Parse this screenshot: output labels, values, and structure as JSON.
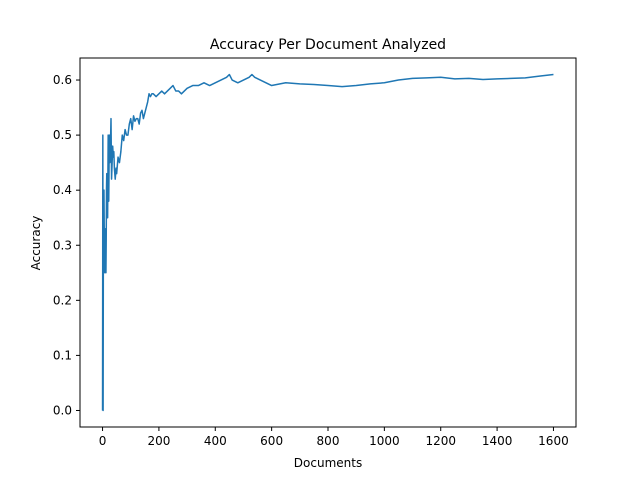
{
  "chart_data": {
    "type": "line",
    "title": "Accuracy Per Document Analyzed",
    "xlabel": "Documents",
    "ylabel": "Accuracy",
    "xlim": [
      -80,
      1680
    ],
    "ylim": [
      -0.03,
      0.64
    ],
    "xticks": [
      0,
      200,
      400,
      600,
      800,
      1000,
      1200,
      1400,
      1600
    ],
    "yticks": [
      0.0,
      0.1,
      0.2,
      0.3,
      0.4,
      0.5,
      0.6
    ],
    "ytick_labels": [
      "0.0",
      "0.1",
      "0.2",
      "0.3",
      "0.4",
      "0.5",
      "0.6"
    ],
    "grid": false,
    "series": [
      {
        "color": "#1f77b4",
        "x": [
          0,
          1,
          2,
          3,
          4,
          5,
          6,
          7,
          8,
          9,
          10,
          11,
          12,
          13,
          14,
          15,
          16,
          18,
          20,
          22,
          24,
          26,
          28,
          30,
          32,
          34,
          36,
          38,
          40,
          42,
          45,
          48,
          50,
          55,
          60,
          65,
          70,
          75,
          80,
          85,
          90,
          95,
          100,
          105,
          110,
          115,
          120,
          125,
          130,
          135,
          140,
          145,
          150,
          155,
          160,
          165,
          170,
          175,
          180,
          190,
          200,
          210,
          220,
          230,
          240,
          250,
          260,
          270,
          280,
          290,
          300,
          320,
          340,
          360,
          380,
          400,
          420,
          440,
          450,
          460,
          480,
          500,
          520,
          530,
          540,
          560,
          580,
          600,
          650,
          700,
          750,
          800,
          850,
          900,
          950,
          1000,
          1050,
          1100,
          1150,
          1200,
          1250,
          1300,
          1350,
          1400,
          1450,
          1500,
          1550,
          1600
        ],
        "y": [
          0.0,
          0.5,
          0.0,
          0.33,
          0.25,
          0.4,
          0.33,
          0.29,
          0.25,
          0.33,
          0.3,
          0.27,
          0.25,
          0.31,
          0.4,
          0.43,
          0.4,
          0.35,
          0.5,
          0.38,
          0.5,
          0.45,
          0.48,
          0.53,
          0.42,
          0.45,
          0.48,
          0.46,
          0.47,
          0.44,
          0.42,
          0.44,
          0.43,
          0.46,
          0.45,
          0.47,
          0.5,
          0.49,
          0.51,
          0.5,
          0.5,
          0.52,
          0.53,
          0.51,
          0.535,
          0.525,
          0.53,
          0.53,
          0.52,
          0.54,
          0.545,
          0.53,
          0.54,
          0.55,
          0.56,
          0.575,
          0.57,
          0.575,
          0.575,
          0.57,
          0.575,
          0.58,
          0.575,
          0.58,
          0.585,
          0.59,
          0.58,
          0.58,
          0.575,
          0.58,
          0.585,
          0.59,
          0.59,
          0.595,
          0.59,
          0.595,
          0.6,
          0.605,
          0.61,
          0.6,
          0.595,
          0.6,
          0.605,
          0.61,
          0.605,
          0.6,
          0.595,
          0.59,
          0.595,
          0.593,
          0.592,
          0.59,
          0.588,
          0.59,
          0.593,
          0.595,
          0.6,
          0.603,
          0.604,
          0.605,
          0.602,
          0.603,
          0.601,
          0.602,
          0.603,
          0.604,
          0.607,
          0.61
        ]
      }
    ]
  }
}
